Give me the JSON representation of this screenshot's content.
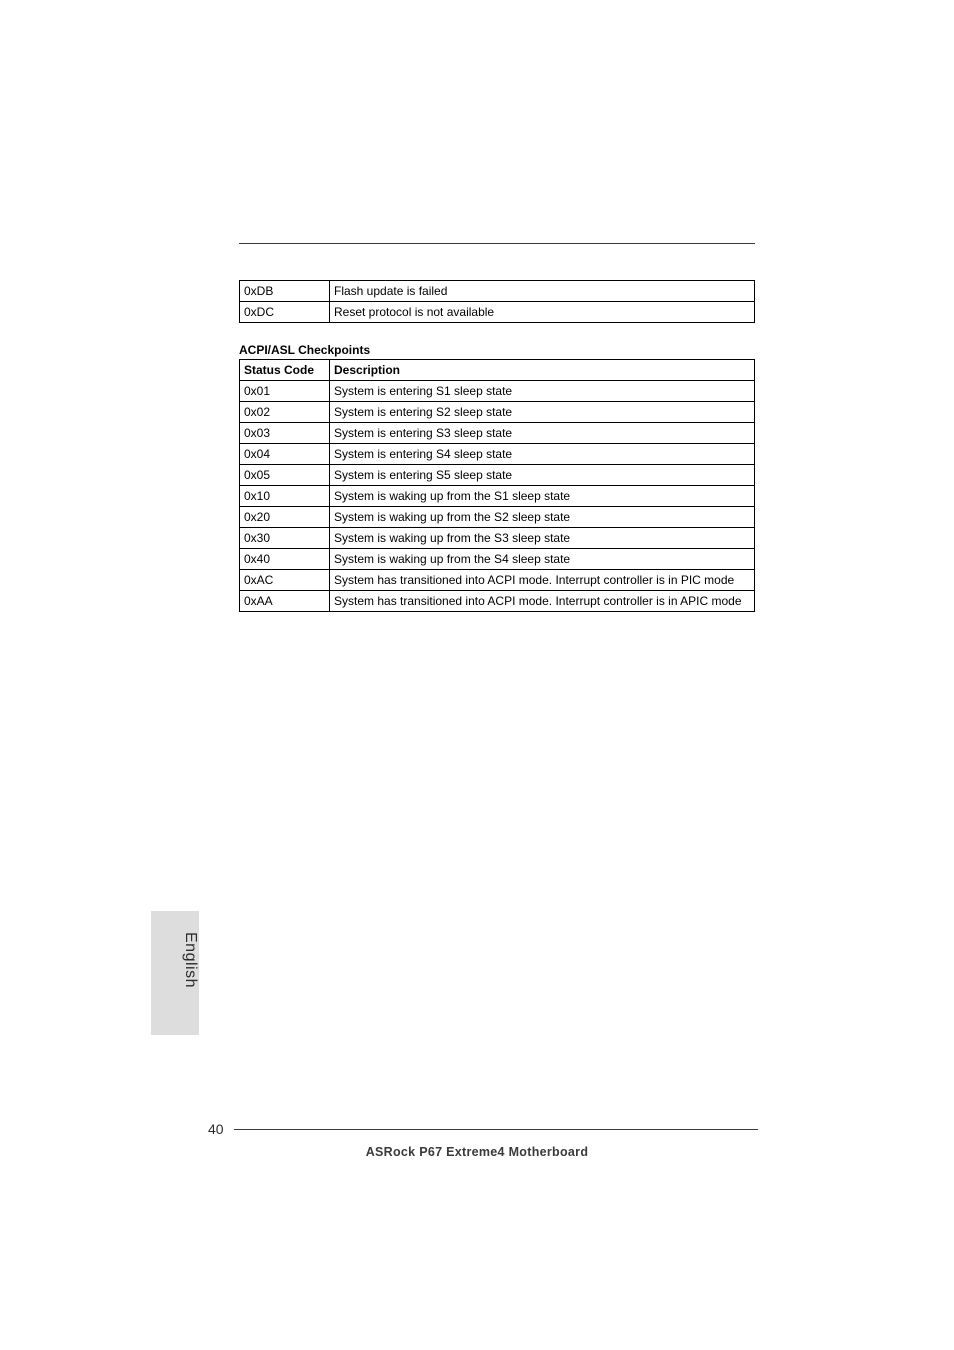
{
  "top_table": {
    "rows": [
      {
        "code": "0xDB",
        "desc": "Flash update is failed"
      },
      {
        "code": "0xDC",
        "desc": "Reset protocol is not available"
      }
    ]
  },
  "section_title": "ACPI/ASL Checkpoints",
  "acpi_table": {
    "col_code_header": "Status Code",
    "col_desc_header": "Description",
    "rows": [
      {
        "code": "0x01",
        "desc": "System is entering S1 sleep state"
      },
      {
        "code": "0x02",
        "desc": "System is entering S2 sleep state"
      },
      {
        "code": "0x03",
        "desc": "System is entering S3 sleep state"
      },
      {
        "code": "0x04",
        "desc": "System is entering S4 sleep state"
      },
      {
        "code": "0x05",
        "desc": "System is entering S5 sleep state"
      },
      {
        "code": "0x10",
        "desc": "System is waking up from the S1 sleep state"
      },
      {
        "code": "0x20",
        "desc": "System is waking up from the S2 sleep state"
      },
      {
        "code": "0x30",
        "desc": "System is waking up from the S3 sleep state"
      },
      {
        "code": "0x40",
        "desc": "System is waking up from the S4 sleep state"
      },
      {
        "code": "0xAC",
        "desc": "System has transitioned into ACPI mode. Interrupt controller is in PIC mode"
      },
      {
        "code": "0xAA",
        "desc": "System has transitioned into ACPI mode. Interrupt controller is in APIC mode"
      }
    ]
  },
  "side_label": "English",
  "page_number": "40",
  "footer": "ASRock  P67 Extreme4  Motherboard"
}
